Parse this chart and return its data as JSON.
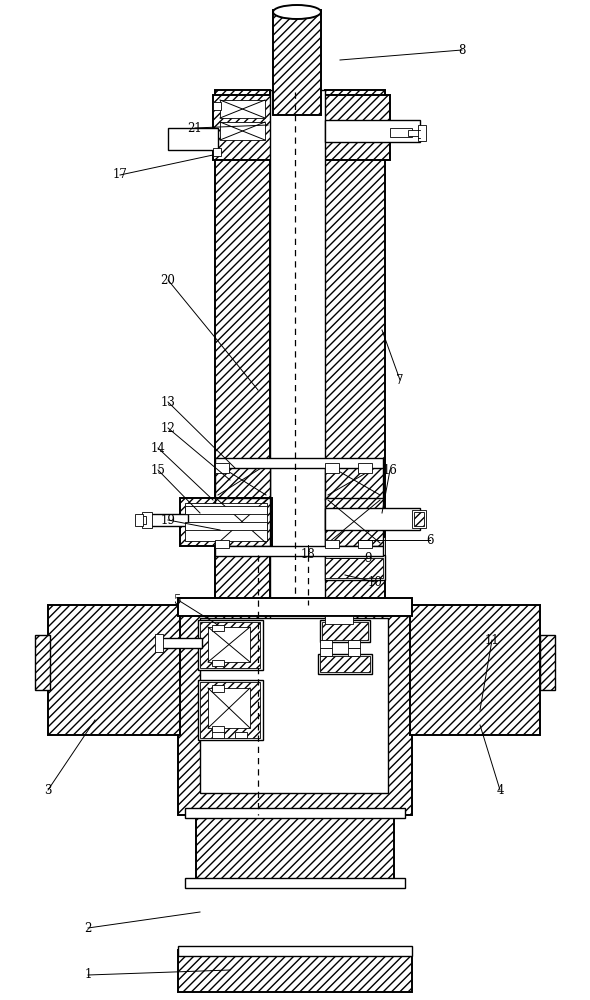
{
  "bg": "#ffffff",
  "fig_w": 5.9,
  "fig_h": 10.0,
  "dpi": 100,
  "lfs": 8.5,
  "leaders": [
    [
      "1",
      88,
      975,
      230,
      970
    ],
    [
      "2",
      88,
      928,
      200,
      912
    ],
    [
      "3",
      48,
      790,
      95,
      720
    ],
    [
      "4",
      500,
      790,
      480,
      725
    ],
    [
      "5",
      178,
      600,
      218,
      625
    ],
    [
      "6",
      430,
      540,
      358,
      540
    ],
    [
      "7",
      400,
      380,
      382,
      330
    ],
    [
      "8",
      462,
      50,
      340,
      60
    ],
    [
      "9",
      368,
      558,
      330,
      558
    ],
    [
      "10",
      375,
      582,
      345,
      575
    ],
    [
      "11",
      492,
      640,
      480,
      710
    ],
    [
      "12",
      168,
      428,
      230,
      480
    ],
    [
      "13",
      168,
      402,
      235,
      468
    ],
    [
      "14",
      158,
      448,
      213,
      500
    ],
    [
      "15",
      158,
      470,
      200,
      513
    ],
    [
      "16",
      390,
      470,
      382,
      513
    ],
    [
      "17",
      120,
      175,
      213,
      155
    ],
    [
      "18",
      308,
      555,
      308,
      545
    ],
    [
      "19",
      168,
      520,
      220,
      530
    ],
    [
      "20",
      168,
      280,
      258,
      390
    ],
    [
      "21",
      195,
      128,
      268,
      125
    ]
  ]
}
